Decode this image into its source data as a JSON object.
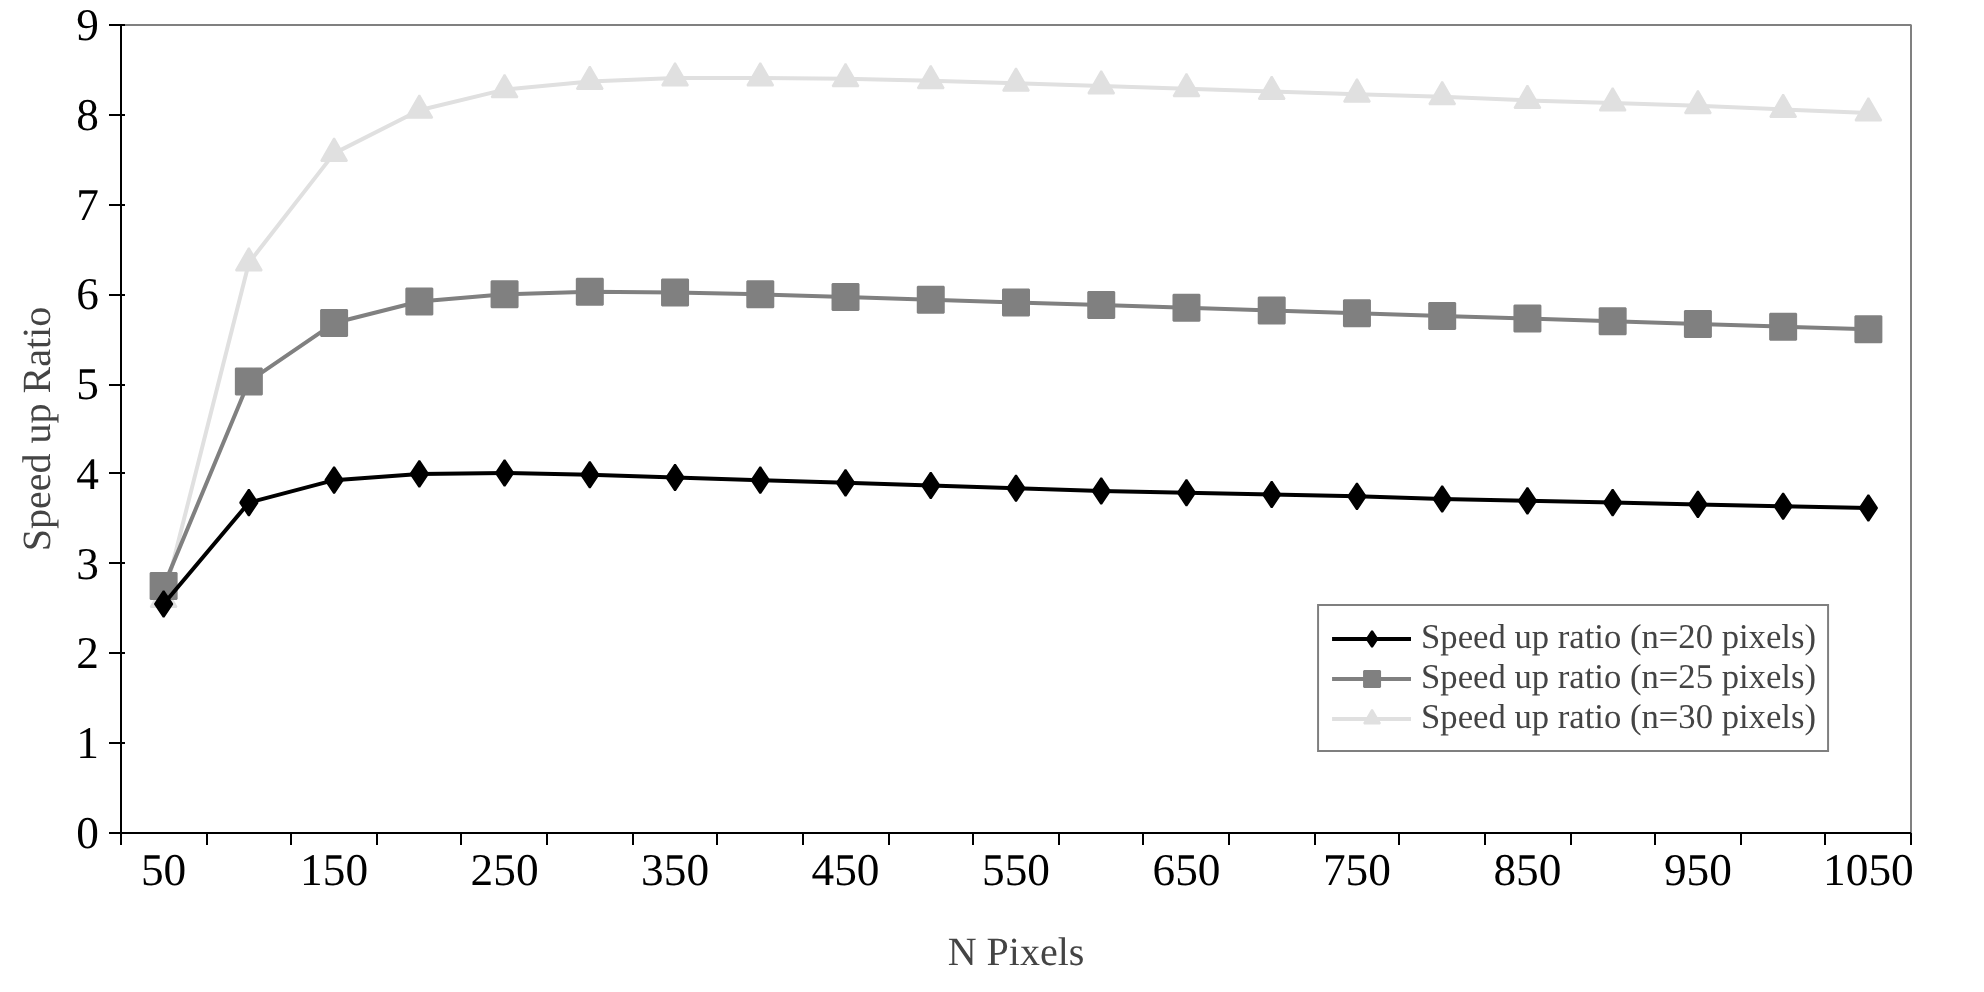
{
  "chart_data": {
    "type": "line",
    "xlabel": "N Pixels",
    "ylabel": "Speed up Ratio",
    "categories": [
      "50",
      null,
      "150",
      null,
      "250",
      null,
      "350",
      null,
      "450",
      null,
      "550",
      null,
      "650",
      null,
      "750",
      null,
      "850",
      null,
      "950",
      null,
      "1050"
    ],
    "ylim": [
      0,
      9
    ],
    "yticks": [
      0,
      1,
      2,
      3,
      4,
      5,
      6,
      7,
      8,
      9
    ],
    "grid": false,
    "legend": "bottom right",
    "line_style": "solid",
    "series": [
      {
        "name": "Speed up ratio (n=20 pixels)",
        "color": "#000000",
        "marker": "diamond",
        "values": [
          2.55,
          3.68,
          3.93,
          4.0,
          4.01,
          3.99,
          3.96,
          3.93,
          3.9,
          3.87,
          3.84,
          3.81,
          3.79,
          3.77,
          3.75,
          3.72,
          3.7,
          3.68,
          3.66,
          3.64,
          3.62
        ]
      },
      {
        "name": "Speed up ratio (n=25 pixels)",
        "color": "#808080",
        "marker": "square",
        "values": [
          2.75,
          5.03,
          5.68,
          5.92,
          6.0,
          6.03,
          6.02,
          6.0,
          5.97,
          5.94,
          5.91,
          5.88,
          5.85,
          5.82,
          5.79,
          5.76,
          5.73,
          5.7,
          5.67,
          5.64,
          5.61
        ]
      },
      {
        "name": "Speed up ratio (n=30 pixels)",
        "color": "#e0e0e0",
        "marker": "triangle",
        "values": [
          2.6,
          6.35,
          7.57,
          8.05,
          8.28,
          8.37,
          8.41,
          8.41,
          8.4,
          8.38,
          8.35,
          8.32,
          8.29,
          8.26,
          8.23,
          8.2,
          8.16,
          8.13,
          8.1,
          8.06,
          8.02
        ]
      }
    ]
  }
}
